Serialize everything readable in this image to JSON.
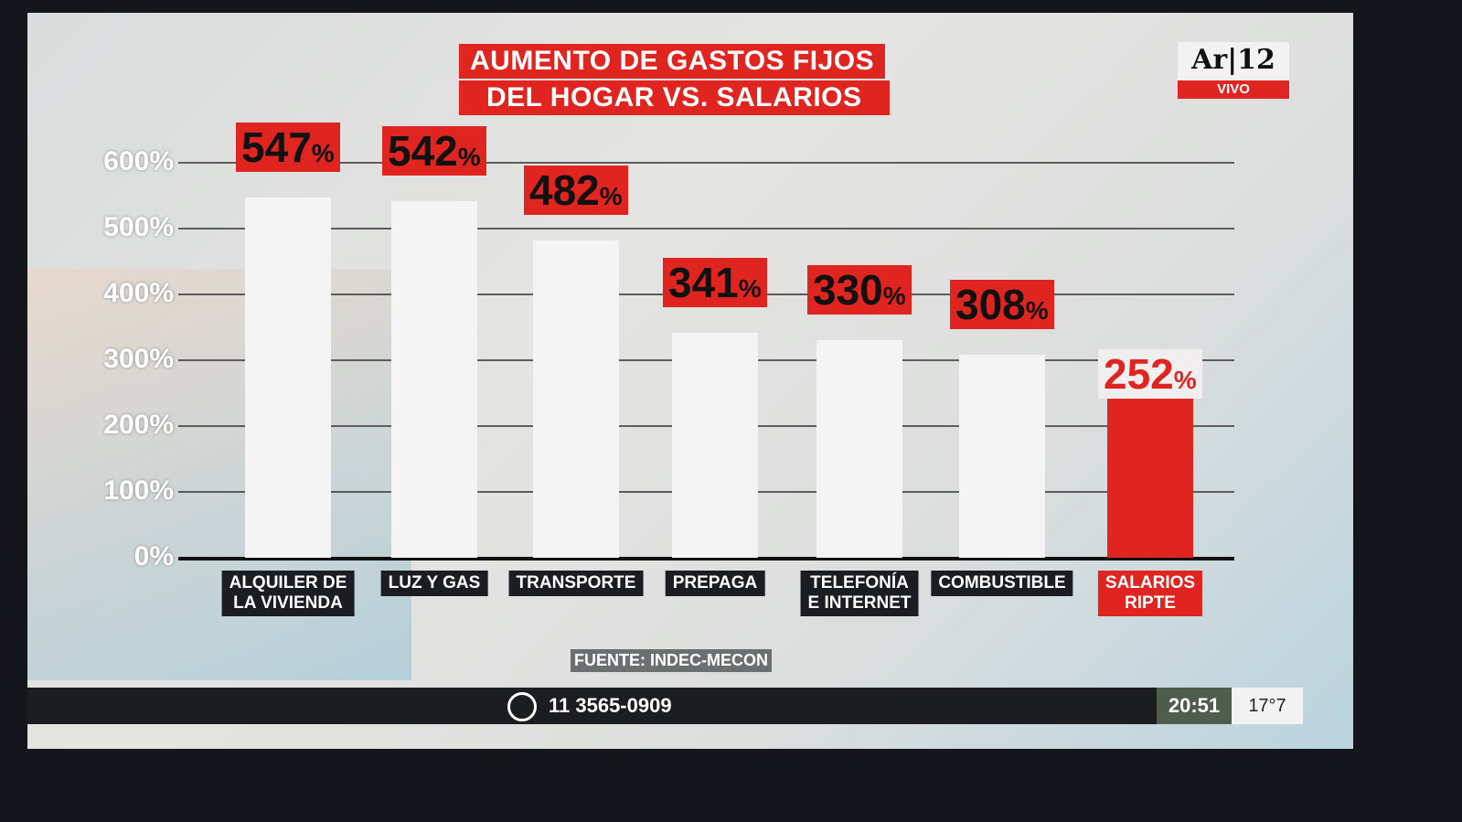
{
  "title_lines": [
    "AUMENTO DE GASTOS FIJOS",
    "DEL HOGAR VS. SALARIOS"
  ],
  "logo": {
    "text": "Ar|12",
    "badge": "VIVO"
  },
  "chart_data": {
    "type": "bar",
    "title": "AUMENTO DE GASTOS FIJOS DEL HOGAR VS. SALARIOS",
    "categories": [
      "ALQUILER DE LA VIVIENDA",
      "LUZ Y GAS",
      "TRANSPORTE",
      "PREPAGA",
      "TELEFONÍA E INTERNET",
      "COMBUSTIBLE",
      "SALARIOS RIPTE"
    ],
    "category_lines": [
      [
        "ALQUILER DE",
        "LA VIVIENDA"
      ],
      [
        "LUZ Y GAS"
      ],
      [
        "TRANSPORTE"
      ],
      [
        "PREPAGA"
      ],
      [
        "TELEFONÍA",
        "E INTERNET"
      ],
      [
        "COMBUSTIBLE"
      ],
      [
        "SALARIOS",
        "RIPTE"
      ]
    ],
    "values": [
      547,
      542,
      482,
      341,
      330,
      308,
      252
    ],
    "value_labels": [
      "547",
      "542",
      "482",
      "341",
      "330",
      "308",
      "252"
    ],
    "unit": "%",
    "yticks": [
      "0%",
      "100%",
      "200%",
      "300%",
      "400%",
      "500%",
      "600%"
    ],
    "ylim": [
      0,
      600
    ],
    "grid": true,
    "bar_colors": [
      "#f4f4f4",
      "#f4f4f4",
      "#f4f4f4",
      "#f4f4f4",
      "#f4f4f4",
      "#f4f4f4",
      "#e0241f"
    ]
  },
  "source": "FUENTE: INDEC-MECON",
  "ticker": {
    "phone": "11 3565-0909",
    "time": "20:51",
    "temperature": "17°7"
  }
}
